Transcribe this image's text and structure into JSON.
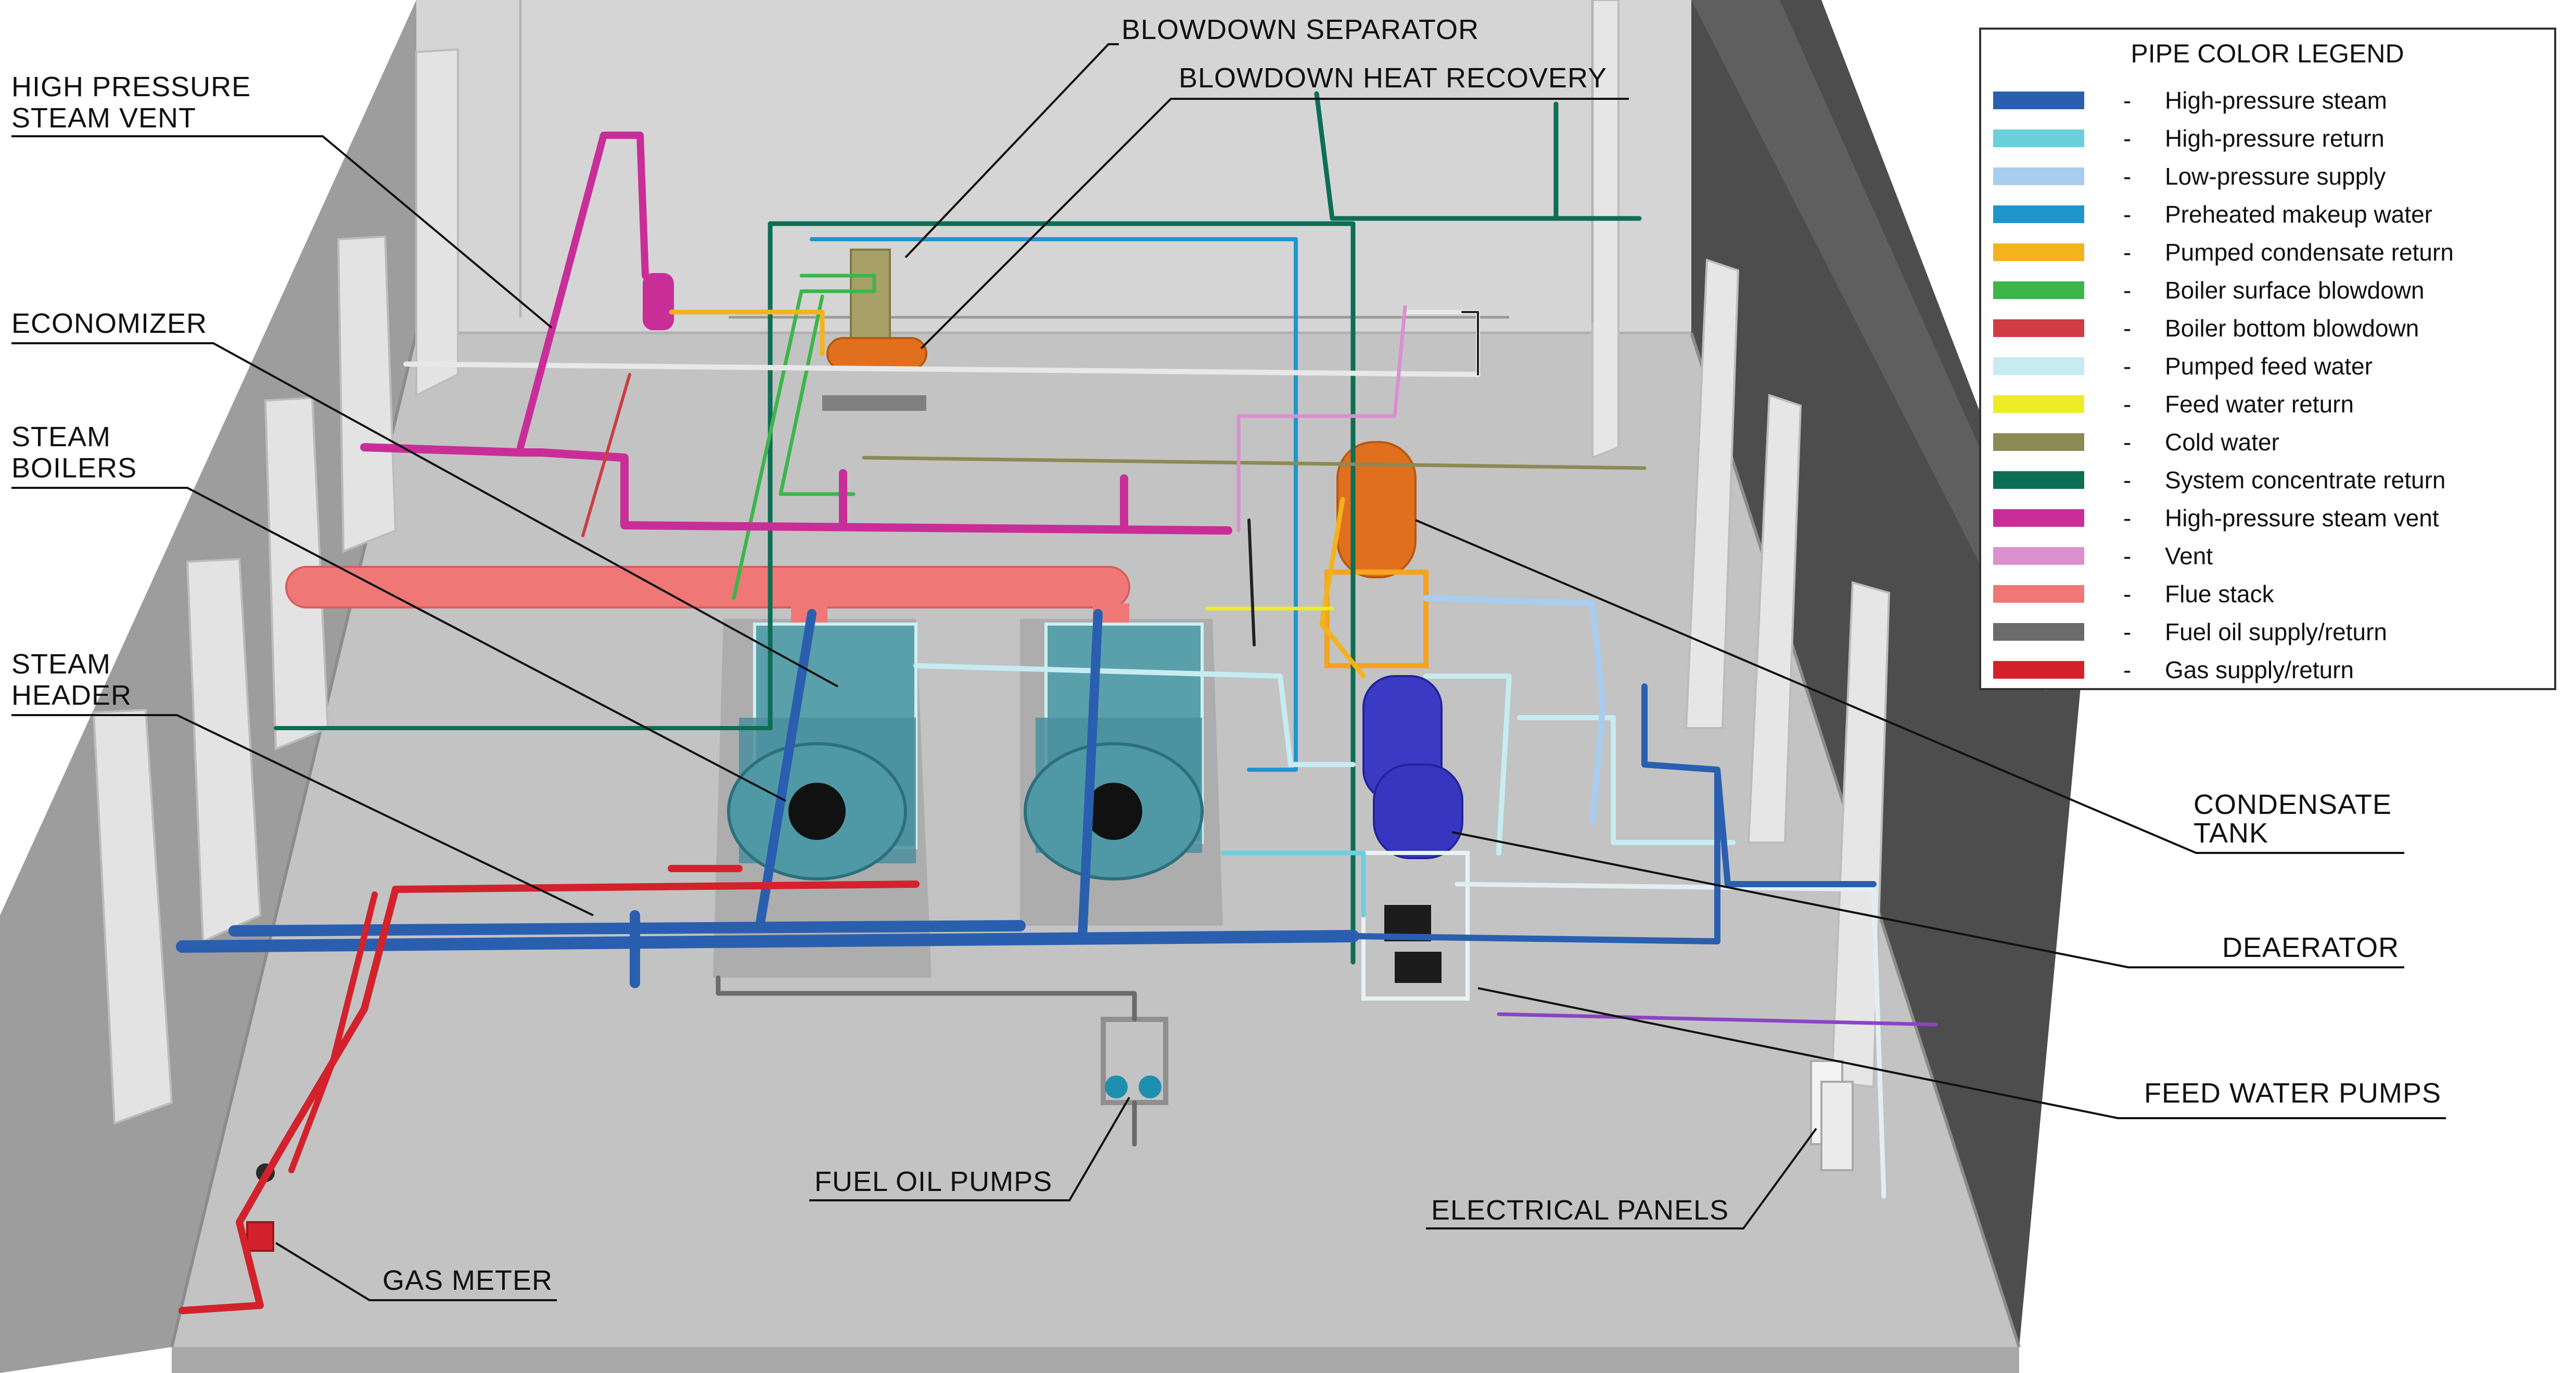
{
  "callouts": {
    "hp_vent": {
      "line1": "HIGH PRESSURE",
      "line2": "STEAM VENT"
    },
    "blowdown_separator": "BLOWDOWN SEPARATOR",
    "blowdown_heat_recovery": "BLOWDOWN HEAT RECOVERY",
    "economizer": "ECONOMIZER",
    "steam_boilers": {
      "line1": "STEAM",
      "line2": "BOILERS"
    },
    "steam_header": {
      "line1": "STEAM",
      "line2": "HEADER"
    },
    "condensate_tank": {
      "line1": "CONDENSATE",
      "line2": "TANK"
    },
    "deaerator": "DEAERATOR",
    "feed_water_pumps": "FEED WATER PUMPS",
    "fuel_oil_pumps": "FUEL OIL PUMPS",
    "electrical_panels": "ELECTRICAL PANELS",
    "gas_meter": "GAS METER"
  },
  "legend": {
    "title": "PIPE COLOR LEGEND",
    "dash": "-",
    "items": [
      {
        "label": "High-pressure steam",
        "color": "#2a5faf"
      },
      {
        "label": "High-pressure return",
        "color": "#6ccfdc"
      },
      {
        "label": "Low-pressure supply",
        "color": "#a9cdee"
      },
      {
        "label": "Preheated makeup water",
        "color": "#1e96cd"
      },
      {
        "label": "Pumped condensate return",
        "color": "#f4b21d"
      },
      {
        "label": "Boiler surface blowdown",
        "color": "#3db54a"
      },
      {
        "label": "Boiler bottom blowdown",
        "color": "#cf3c43"
      },
      {
        "label": "Pumped feed water",
        "color": "#c6ecf1"
      },
      {
        "label": "Feed water return",
        "color": "#eded25"
      },
      {
        "label": "Cold water",
        "color": "#8c8a55"
      },
      {
        "label": "System concentrate return",
        "color": "#0c6e55"
      },
      {
        "label": "High-pressure steam vent",
        "color": "#c92e98"
      },
      {
        "label": "Vent",
        "color": "#db8fcf"
      },
      {
        "label": "Flue stack",
        "color": "#ef7877"
      },
      {
        "label": "Fuel oil supply/return",
        "color": "#6b6b6b"
      },
      {
        "label": "Gas supply/return",
        "color": "#d3222c"
      }
    ]
  }
}
